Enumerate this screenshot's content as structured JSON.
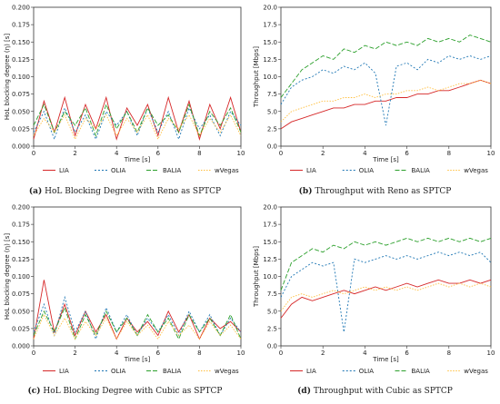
{
  "colors": {
    "LIA": "#d62728",
    "OLIA": "#1f77b4",
    "BALIA": "#2ca02c",
    "wVegas": "#ffbf3f"
  },
  "legend_labels": [
    "LIA",
    "OLIA",
    "BALIA",
    "wVegas"
  ],
  "captions": [
    {
      "tag": "(a)",
      "text": "HoL Blocking Degree with Reno as SPTCP"
    },
    {
      "tag": "(b)",
      "text": "Throughput with Reno as SPTCP"
    },
    {
      "tag": "(c)",
      "text": "HoL Blocking Degree with Cubic as SPTCP"
    },
    {
      "tag": "(d)",
      "text": "Throughput with Cubic as SPTCP"
    }
  ],
  "chart_data": [
    {
      "type": "line",
      "xlabel": "Time [s]",
      "ylabel": "HoL blocking degree (η) [s]",
      "xlim": [
        0,
        10
      ],
      "ylim": [
        0,
        0.2
      ],
      "xticks": [
        "0",
        "2",
        "4",
        "6",
        "8",
        "10"
      ],
      "yticks": [
        "0.000",
        "0.025",
        "0.050",
        "0.075",
        "0.100",
        "0.125",
        "0.150",
        "0.175",
        "0.200"
      ],
      "x": [
        0.0,
        0.5,
        1.0,
        1.5,
        2.0,
        2.5,
        3.0,
        3.5,
        4.0,
        4.5,
        5.0,
        5.5,
        6.0,
        6.5,
        7.0,
        7.5,
        8.0,
        8.5,
        9.0,
        9.5,
        10.0
      ],
      "series": [
        {
          "name": "LIA",
          "values": [
            0.01,
            0.065,
            0.02,
            0.07,
            0.015,
            0.06,
            0.025,
            0.07,
            0.01,
            0.055,
            0.03,
            0.06,
            0.015,
            0.07,
            0.02,
            0.065,
            0.01,
            0.06,
            0.025,
            0.07,
            0.02
          ]
        },
        {
          "name": "OLIA",
          "values": [
            0.02,
            0.05,
            0.01,
            0.055,
            0.02,
            0.045,
            0.01,
            0.05,
            0.03,
            0.05,
            0.015,
            0.055,
            0.02,
            0.05,
            0.01,
            0.055,
            0.025,
            0.045,
            0.015,
            0.05,
            0.03
          ]
        },
        {
          "name": "BALIA",
          "values": [
            0.03,
            0.06,
            0.02,
            0.05,
            0.03,
            0.055,
            0.015,
            0.06,
            0.025,
            0.05,
            0.02,
            0.055,
            0.03,
            0.045,
            0.02,
            0.06,
            0.015,
            0.05,
            0.03,
            0.055,
            0.02
          ]
        },
        {
          "name": "wVegas",
          "values": [
            0.015,
            0.04,
            0.02,
            0.045,
            0.01,
            0.04,
            0.025,
            0.045,
            0.015,
            0.04,
            0.02,
            0.045,
            0.01,
            0.04,
            0.025,
            0.045,
            0.015,
            0.04,
            0.02,
            0.045,
            0.015
          ]
        }
      ]
    },
    {
      "type": "line",
      "xlabel": "Time [s]",
      "ylabel": "Throughput [Mbps]",
      "xlim": [
        0,
        10
      ],
      "ylim": [
        0,
        20
      ],
      "xticks": [
        "0",
        "2",
        "4",
        "6",
        "8",
        "10"
      ],
      "yticks": [
        "0.0",
        "2.5",
        "5.0",
        "7.5",
        "10.0",
        "12.5",
        "15.0",
        "17.5",
        "20.0"
      ],
      "x": [
        0.0,
        0.5,
        1.0,
        1.5,
        2.0,
        2.5,
        3.0,
        3.5,
        4.0,
        4.5,
        5.0,
        5.5,
        6.0,
        6.5,
        7.0,
        7.5,
        8.0,
        8.5,
        9.0,
        9.5,
        10.0
      ],
      "series": [
        {
          "name": "LIA",
          "values": [
            2.5,
            3.5,
            4.0,
            4.5,
            5.0,
            5.5,
            5.5,
            6.0,
            6.0,
            6.5,
            6.5,
            7.0,
            7.0,
            7.5,
            7.5,
            8.0,
            8.0,
            8.5,
            9.0,
            9.5,
            9.0
          ]
        },
        {
          "name": "OLIA",
          "values": [
            6.0,
            8.5,
            9.5,
            10.0,
            11.0,
            10.5,
            11.5,
            11.0,
            12.0,
            10.5,
            3.0,
            11.5,
            12.0,
            11.0,
            12.5,
            12.0,
            13.0,
            12.5,
            13.0,
            12.5,
            13.0
          ]
        },
        {
          "name": "BALIA",
          "values": [
            7.0,
            9.0,
            11.0,
            12.0,
            13.0,
            12.5,
            14.0,
            13.5,
            14.5,
            14.0,
            15.0,
            14.5,
            15.0,
            14.5,
            15.5,
            15.0,
            15.5,
            15.0,
            16.0,
            15.5,
            15.0
          ]
        },
        {
          "name": "wVegas",
          "values": [
            3.5,
            5.0,
            5.5,
            6.0,
            6.5,
            6.5,
            7.0,
            7.0,
            7.5,
            7.0,
            7.5,
            7.5,
            8.0,
            8.0,
            8.5,
            8.0,
            8.5,
            9.0,
            9.0,
            9.5,
            9.0
          ]
        }
      ]
    },
    {
      "type": "line",
      "xlabel": "Time [s]",
      "ylabel": "HoL blocking degree (η) [s]",
      "xlim": [
        0,
        10
      ],
      "ylim": [
        0,
        0.2
      ],
      "xticks": [
        "0",
        "2",
        "4",
        "6",
        "8",
        "10"
      ],
      "yticks": [
        "0.000",
        "0.025",
        "0.050",
        "0.075",
        "0.100",
        "0.125",
        "0.150",
        "0.175",
        "0.200"
      ],
      "x": [
        0.0,
        0.5,
        1.0,
        1.5,
        2.0,
        2.5,
        3.0,
        3.5,
        4.0,
        4.5,
        5.0,
        5.5,
        6.0,
        6.5,
        7.0,
        7.5,
        8.0,
        8.5,
        9.0,
        9.5,
        10.0
      ],
      "series": [
        {
          "name": "LIA",
          "values": [
            0.01,
            0.095,
            0.02,
            0.06,
            0.015,
            0.05,
            0.02,
            0.045,
            0.01,
            0.04,
            0.02,
            0.035,
            0.015,
            0.05,
            0.02,
            0.045,
            0.01,
            0.04,
            0.025,
            0.035,
            0.02
          ]
        },
        {
          "name": "OLIA",
          "values": [
            0.02,
            0.06,
            0.015,
            0.07,
            0.02,
            0.05,
            0.01,
            0.055,
            0.02,
            0.045,
            0.015,
            0.04,
            0.02,
            0.045,
            0.015,
            0.05,
            0.02,
            0.045,
            0.015,
            0.04,
            0.02
          ]
        },
        {
          "name": "BALIA",
          "values": [
            0.015,
            0.05,
            0.02,
            0.055,
            0.01,
            0.045,
            0.015,
            0.05,
            0.02,
            0.04,
            0.015,
            0.045,
            0.02,
            0.04,
            0.01,
            0.045,
            0.02,
            0.04,
            0.015,
            0.045,
            0.01
          ]
        },
        {
          "name": "wVegas",
          "values": [
            0.01,
            0.045,
            0.015,
            0.04,
            0.01,
            0.035,
            0.015,
            0.04,
            0.01,
            0.035,
            0.015,
            0.03,
            0.01,
            0.035,
            0.015,
            0.03,
            0.01,
            0.035,
            0.015,
            0.03,
            0.01
          ]
        }
      ]
    },
    {
      "type": "line",
      "xlabel": "Time [s]",
      "ylabel": "Throughput [Mbps]",
      "xlim": [
        0,
        10
      ],
      "ylim": [
        0,
        20
      ],
      "xticks": [
        "0",
        "2",
        "4",
        "6",
        "8",
        "10"
      ],
      "yticks": [
        "0.0",
        "2.5",
        "5.0",
        "7.5",
        "10.0",
        "12.5",
        "15.0",
        "17.5",
        "20.0"
      ],
      "x": [
        0.0,
        0.5,
        1.0,
        1.5,
        2.0,
        2.5,
        3.0,
        3.5,
        4.0,
        4.5,
        5.0,
        5.5,
        6.0,
        6.5,
        7.0,
        7.5,
        8.0,
        8.5,
        9.0,
        9.5,
        10.0
      ],
      "series": [
        {
          "name": "LIA",
          "values": [
            4.0,
            6.0,
            7.0,
            6.5,
            7.0,
            7.5,
            8.0,
            7.5,
            8.0,
            8.5,
            8.0,
            8.5,
            9.0,
            8.5,
            9.0,
            9.5,
            9.0,
            9.0,
            9.5,
            9.0,
            9.5
          ]
        },
        {
          "name": "OLIA",
          "values": [
            7.0,
            10.0,
            11.0,
            12.0,
            11.5,
            12.0,
            2.0,
            12.5,
            12.0,
            12.5,
            13.0,
            12.5,
            13.0,
            12.5,
            13.0,
            13.5,
            13.0,
            13.5,
            13.0,
            13.5,
            12.0
          ]
        },
        {
          "name": "BALIA",
          "values": [
            8.0,
            12.0,
            13.0,
            14.0,
            13.5,
            14.5,
            14.0,
            15.0,
            14.5,
            15.0,
            14.5,
            15.0,
            15.5,
            15.0,
            15.5,
            15.0,
            15.5,
            15.0,
            15.5,
            15.0,
            15.5
          ]
        },
        {
          "name": "wVegas",
          "values": [
            5.0,
            7.0,
            7.5,
            7.0,
            7.5,
            8.0,
            7.5,
            8.0,
            8.5,
            8.0,
            8.5,
            8.0,
            8.5,
            8.0,
            8.5,
            9.0,
            8.5,
            9.0,
            8.5,
            9.0,
            8.5
          ]
        }
      ]
    }
  ]
}
